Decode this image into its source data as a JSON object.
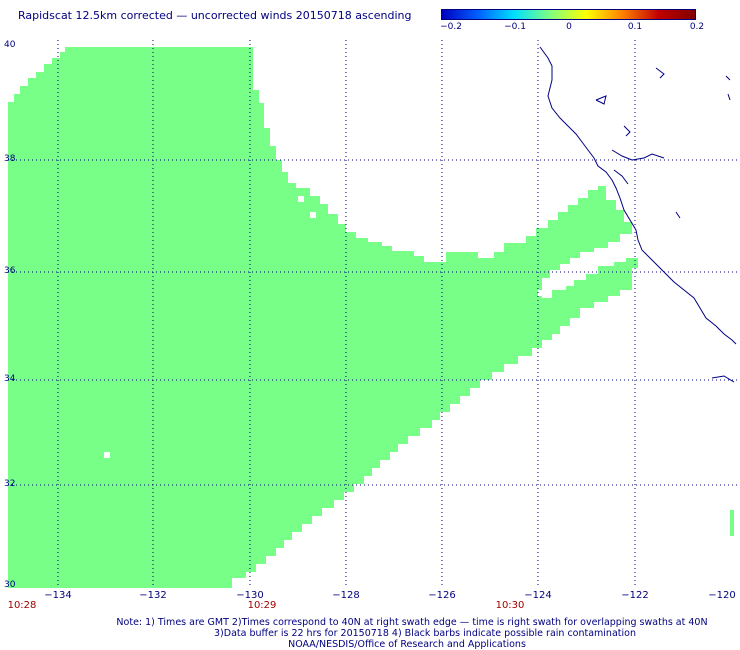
{
  "title": "Rapidscat 12.5km corrected — uncorrected winds 20150718 ascending",
  "colorbar": {
    "ticks": [
      "−0.2",
      "−0.1",
      "0",
      "0.1",
      "0.2"
    ],
    "colors": [
      "#0000c0",
      "#0060ff",
      "#00e0ff",
      "#80ff80",
      "#ffff00",
      "#ff8000",
      "#c00000",
      "#800000"
    ]
  },
  "colors": {
    "swath": "#77ff88",
    "coast": "#000080",
    "grid": "#000080",
    "time_label": "#a00000"
  },
  "map": {
    "lon_range": [
      -135,
      -120
    ],
    "lat_range": [
      30,
      40
    ],
    "lat_labels": [
      "40",
      "38",
      "36",
      "34",
      "32",
      "30"
    ],
    "lon_labels": [
      "−134",
      "−132",
      "−130",
      "−128",
      "−126",
      "−124",
      "−122",
      "−120"
    ],
    "time_labels": [
      "10:28",
      "10:29",
      "10:30"
    ]
  },
  "notes": [
    "Note: 1) Times are GMT 2)Times correspond to 40N at right swath edge — time is right swath for overlapping swaths at 40N",
    "3)Data buffer is 22 hrs for 20150718 4) Black barbs indicate possible rain contamination",
    "NOAA/NESDIS/Office of Research and Applications"
  ]
}
